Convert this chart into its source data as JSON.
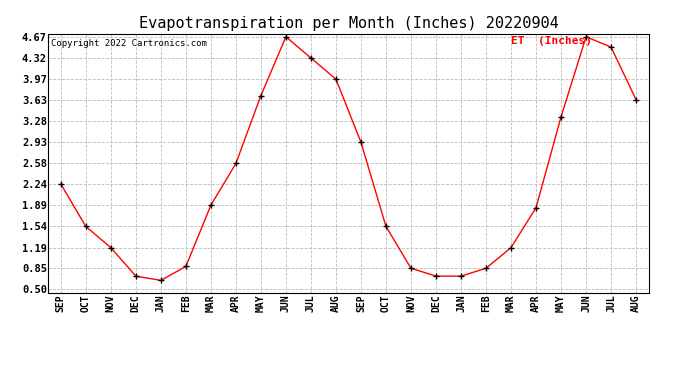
{
  "title": "Evapotranspiration per Month (Inches) 20220904",
  "copyright": "Copyright 2022 Cartronics.com",
  "legend_label": "ET  (Inches)",
  "months": [
    "SEP",
    "OCT",
    "NOV",
    "DEC",
    "JAN",
    "FEB",
    "MAR",
    "APR",
    "MAY",
    "JUN",
    "JUL",
    "AUG",
    "SEP",
    "OCT",
    "NOV",
    "DEC",
    "JAN",
    "FEB",
    "MAR",
    "APR",
    "MAY",
    "JUN",
    "JUL",
    "AUG"
  ],
  "values": [
    2.24,
    1.54,
    1.19,
    0.72,
    0.65,
    0.88,
    1.89,
    2.58,
    3.7,
    4.67,
    4.32,
    3.97,
    2.93,
    1.54,
    0.85,
    0.72,
    0.72,
    0.85,
    1.19,
    1.85,
    3.35,
    4.67,
    4.5,
    3.63
  ],
  "line_color": "red",
  "marker_color": "black",
  "grid_color": "#bbbbbb",
  "bg_color": "white",
  "title_fontsize": 11,
  "label_fontsize": 7,
  "ytick_fontsize": 7.5,
  "yticks": [
    0.5,
    0.85,
    1.19,
    1.54,
    1.89,
    2.24,
    2.58,
    2.93,
    3.28,
    3.63,
    3.97,
    4.32,
    4.67
  ],
  "ylim_min": 0.5,
  "ylim_max": 4.67
}
